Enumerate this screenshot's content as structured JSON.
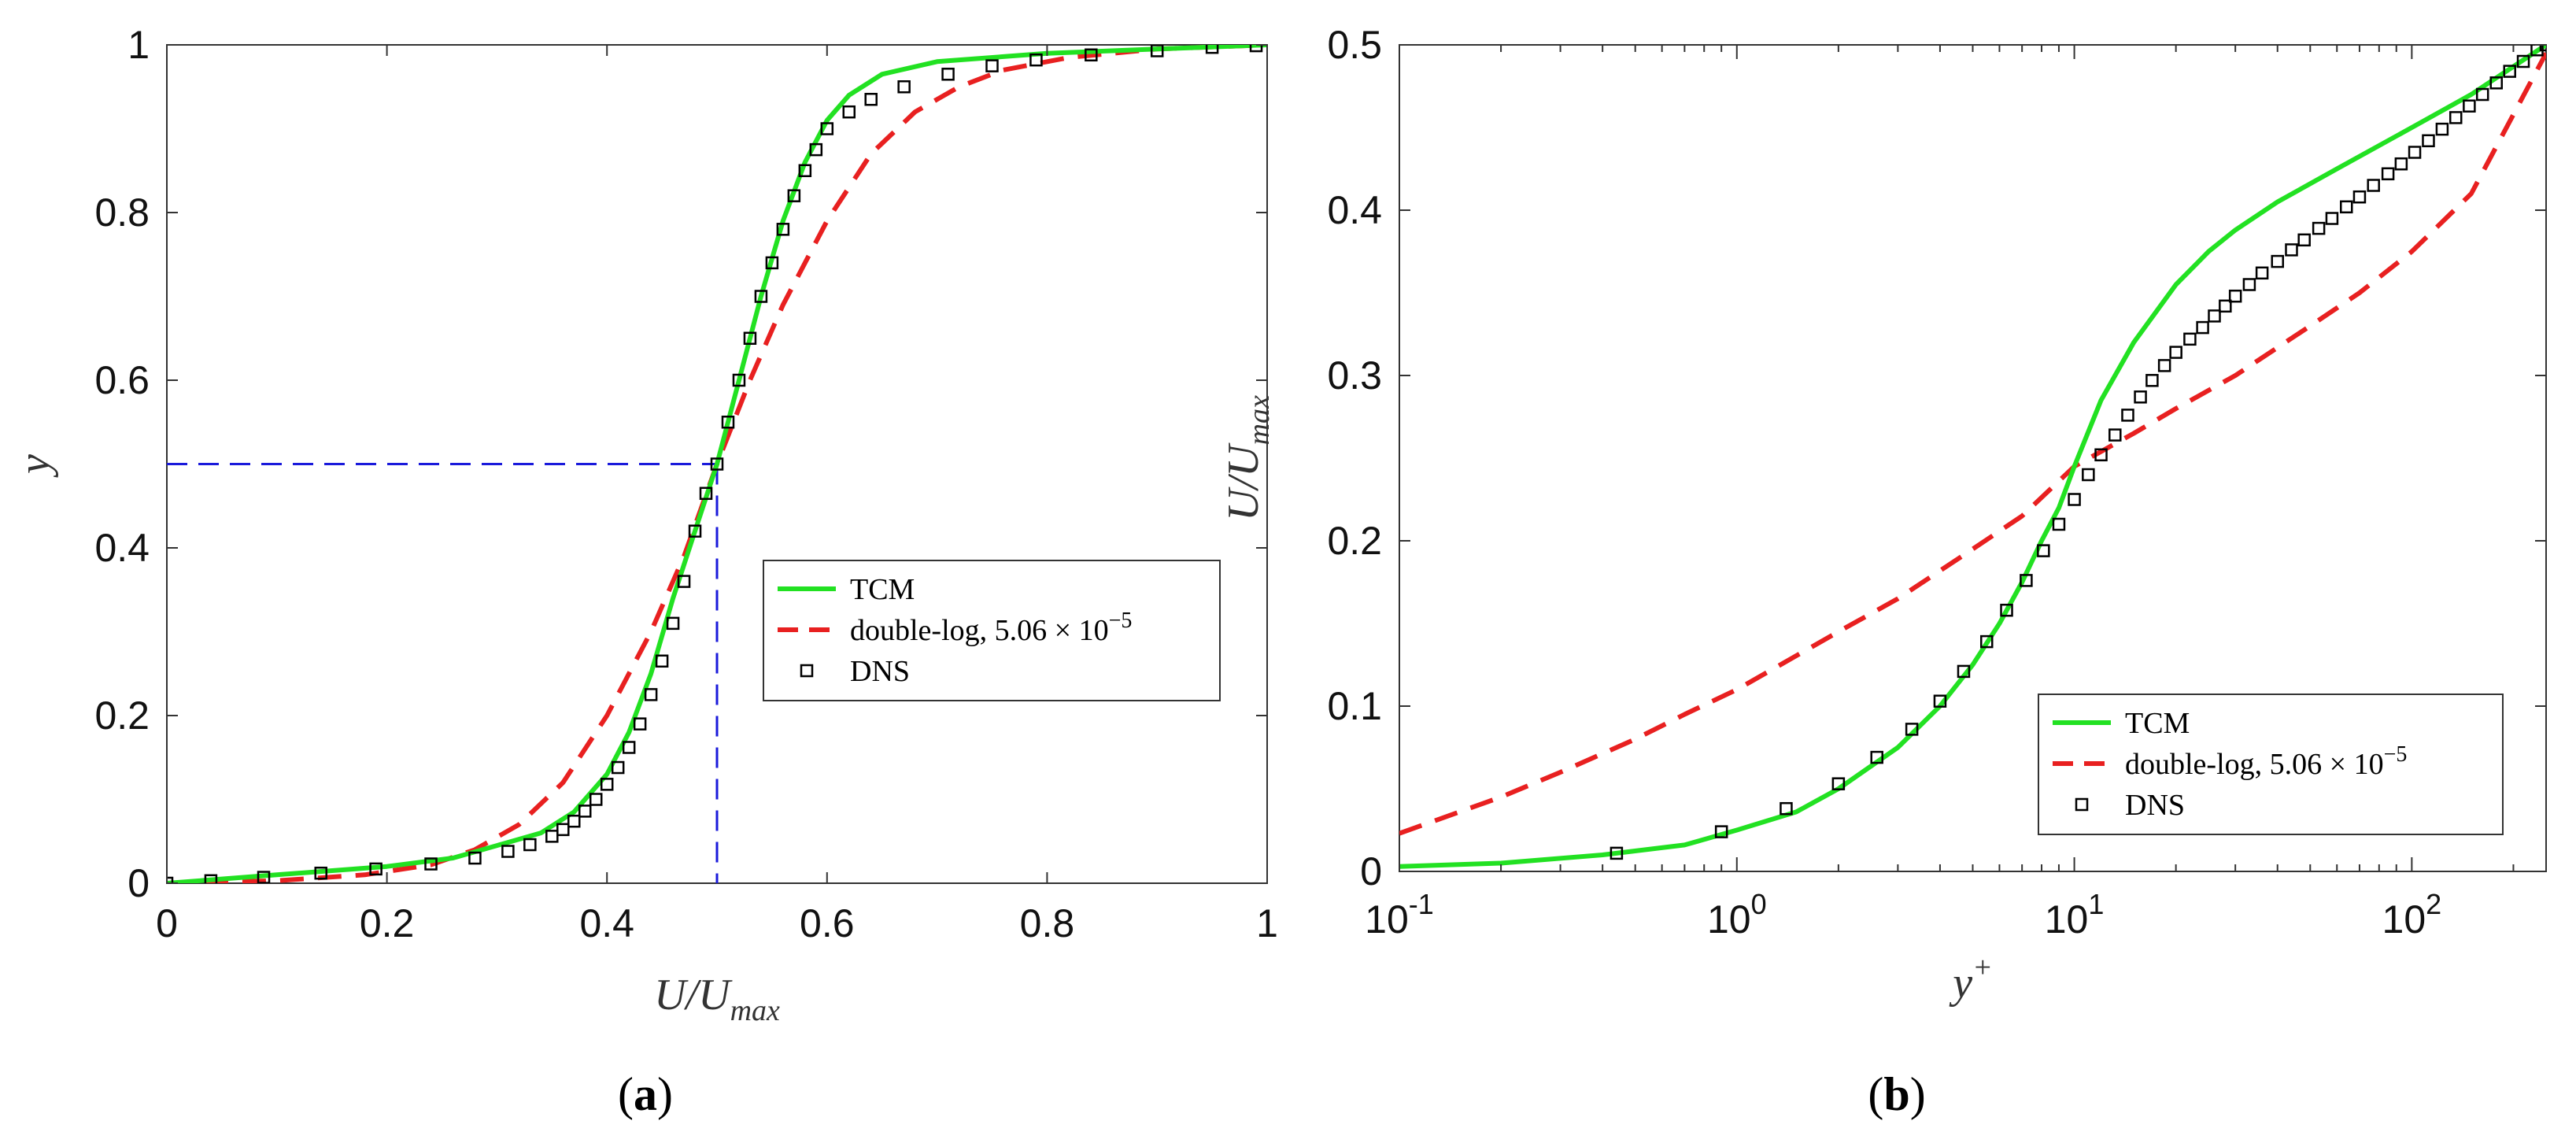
{
  "figure": {
    "panel_a_label": {
      "open": "(",
      "letter": "a",
      "close": ")"
    },
    "panel_b_label": {
      "open": "(",
      "letter": "b",
      "close": ")"
    }
  },
  "chart_data": [
    {
      "id": "a",
      "type": "line",
      "xlabel": {
        "base": "U/U",
        "sub": "max"
      },
      "ylabel": {
        "base": "y"
      },
      "xlim": [
        0,
        1
      ],
      "ylim": [
        0,
        1
      ],
      "xticks": [
        "0",
        "0.2",
        "0.4",
        "0.6",
        "0.8",
        "1"
      ],
      "xtick_values": [
        0,
        0.2,
        0.4,
        0.6,
        0.8,
        1
      ],
      "yticks": [
        "0",
        "0.2",
        "0.4",
        "0.6",
        "0.8",
        "1"
      ],
      "ytick_values": [
        0,
        0.2,
        0.4,
        0.6,
        0.8,
        1
      ],
      "grid": false,
      "legend": {
        "position": "center-right",
        "entries": [
          {
            "label": "TCM",
            "style": "solid",
            "color": "#22e122"
          },
          {
            "label": "double-log, 5.06 × 10",
            "sup": "−5",
            "style": "dashed",
            "color": "#e82020"
          },
          {
            "label": "DNS",
            "style": "marker-square",
            "color": "#000000"
          }
        ]
      },
      "guide_lines": {
        "x": 0.5,
        "y": 0.5,
        "color": "#1a1adb",
        "style": "dashed"
      },
      "series": [
        {
          "name": "TCM",
          "color": "#22e122",
          "x": [
            0,
            0.1,
            0.2,
            0.26,
            0.3,
            0.34,
            0.37,
            0.4,
            0.42,
            0.44,
            0.46,
            0.48,
            0.5,
            0.52,
            0.54,
            0.56,
            0.58,
            0.6,
            0.62,
            0.65,
            0.7,
            0.8,
            0.9,
            1.0
          ],
          "y": [
            0,
            0.01,
            0.02,
            0.03,
            0.045,
            0.06,
            0.085,
            0.13,
            0.18,
            0.25,
            0.34,
            0.42,
            0.5,
            0.6,
            0.7,
            0.79,
            0.86,
            0.91,
            0.94,
            0.965,
            0.98,
            0.99,
            0.995,
            1.0
          ]
        },
        {
          "name": "double-log, 5.06 × 10^-5",
          "color": "#e82020",
          "x": [
            0,
            0.1,
            0.18,
            0.24,
            0.28,
            0.32,
            0.36,
            0.4,
            0.44,
            0.47,
            0.5,
            0.53,
            0.56,
            0.6,
            0.64,
            0.68,
            0.72,
            0.76,
            0.82,
            0.9,
            1.0
          ],
          "y": [
            0,
            0.003,
            0.01,
            0.022,
            0.04,
            0.07,
            0.12,
            0.2,
            0.3,
            0.39,
            0.5,
            0.6,
            0.69,
            0.79,
            0.87,
            0.92,
            0.95,
            0.97,
            0.985,
            0.995,
            1.0
          ]
        },
        {
          "name": "DNS",
          "color": "#000000",
          "marker": "square",
          "x": [
            0.0,
            0.04,
            0.088,
            0.14,
            0.19,
            0.24,
            0.28,
            0.31,
            0.33,
            0.35,
            0.36,
            0.37,
            0.38,
            0.39,
            0.4,
            0.41,
            0.42,
            0.43,
            0.44,
            0.45,
            0.46,
            0.47,
            0.48,
            0.49,
            0.5,
            0.51,
            0.52,
            0.53,
            0.54,
            0.55,
            0.56,
            0.57,
            0.58,
            0.59,
            0.6,
            0.62,
            0.64,
            0.67,
            0.71,
            0.75,
            0.79,
            0.84,
            0.9,
            0.95,
            0.99
          ],
          "y": [
            0.0,
            0.003,
            0.007,
            0.012,
            0.017,
            0.023,
            0.03,
            0.038,
            0.046,
            0.056,
            0.064,
            0.074,
            0.086,
            0.1,
            0.118,
            0.138,
            0.162,
            0.19,
            0.225,
            0.265,
            0.31,
            0.36,
            0.42,
            0.465,
            0.5,
            0.55,
            0.6,
            0.65,
            0.7,
            0.74,
            0.78,
            0.82,
            0.85,
            0.875,
            0.9,
            0.92,
            0.935,
            0.95,
            0.965,
            0.975,
            0.982,
            0.988,
            0.993,
            0.997,
            0.999
          ]
        }
      ]
    },
    {
      "id": "b",
      "type": "line",
      "xscale": "log",
      "xlabel": {
        "base": "y",
        "sup": "+"
      },
      "ylabel": {
        "base": "U/U",
        "sub": "max"
      },
      "xlim": [
        0.1,
        250
      ],
      "ylim": [
        0,
        0.5
      ],
      "xticks": [
        {
          "base": "10",
          "exp": "-1",
          "value": 0.1
        },
        {
          "base": "10",
          "exp": "0",
          "value": 1
        },
        {
          "base": "10",
          "exp": "1",
          "value": 10
        },
        {
          "base": "10",
          "exp": "2",
          "value": 100
        }
      ],
      "yticks": [
        "0",
        "0.1",
        "0.2",
        "0.3",
        "0.4",
        "0.5"
      ],
      "ytick_values": [
        0,
        0.1,
        0.2,
        0.3,
        0.4,
        0.5
      ],
      "grid": false,
      "legend": {
        "position": "bottom-right",
        "entries": [
          {
            "label": "TCM",
            "style": "solid",
            "color": "#22e122"
          },
          {
            "label": "double-log, 5.06 × 10",
            "sup": "−5",
            "style": "dashed",
            "color": "#e82020"
          },
          {
            "label": "DNS",
            "style": "marker-square",
            "color": "#000000"
          }
        ]
      },
      "series": [
        {
          "name": "TCM",
          "color": "#22e122",
          "x": [
            0.1,
            0.2,
            0.4,
            0.7,
            1,
            1.5,
            2,
            3,
            4,
            5,
            6,
            7,
            8,
            9,
            10,
            12,
            15,
            20,
            25,
            30,
            40,
            60,
            100,
            150,
            250
          ],
          "y": [
            0.003,
            0.005,
            0.01,
            0.016,
            0.025,
            0.036,
            0.05,
            0.075,
            0.1,
            0.125,
            0.15,
            0.175,
            0.2,
            0.22,
            0.245,
            0.285,
            0.32,
            0.355,
            0.375,
            0.388,
            0.405,
            0.425,
            0.45,
            0.47,
            0.5
          ]
        },
        {
          "name": "double-log, 5.06 × 10^-5",
          "color": "#e82020",
          "x": [
            0.1,
            0.2,
            0.3,
            0.5,
            0.7,
            1,
            2,
            3,
            5,
            7,
            10,
            15,
            20,
            30,
            50,
            70,
            100,
            150,
            250
          ],
          "y": [
            0.023,
            0.045,
            0.06,
            0.08,
            0.095,
            0.11,
            0.145,
            0.165,
            0.195,
            0.215,
            0.245,
            0.265,
            0.28,
            0.3,
            0.33,
            0.35,
            0.375,
            0.41,
            0.495
          ]
        },
        {
          "name": "DNS",
          "color": "#000000",
          "marker": "square",
          "x": [
            0.44,
            0.9,
            1.4,
            2.0,
            2.6,
            3.3,
            4.0,
            4.7,
            5.5,
            6.3,
            7.2,
            8.1,
            9.0,
            10.0,
            11.0,
            12.0,
            13.2,
            14.4,
            15.7,
            17.0,
            18.5,
            20,
            22,
            24,
            26,
            28,
            30,
            33,
            36,
            40,
            44,
            48,
            53,
            58,
            64,
            70,
            77,
            85,
            93,
            102,
            112,
            123,
            135,
            148,
            162,
            178,
            195,
            214,
            235,
            250
          ],
          "y": [
            0.011,
            0.024,
            0.038,
            0.053,
            0.069,
            0.086,
            0.103,
            0.121,
            0.139,
            0.158,
            0.176,
            0.194,
            0.21,
            0.225,
            0.24,
            0.252,
            0.264,
            0.276,
            0.287,
            0.297,
            0.306,
            0.314,
            0.322,
            0.329,
            0.336,
            0.342,
            0.348,
            0.355,
            0.362,
            0.369,
            0.376,
            0.382,
            0.389,
            0.395,
            0.402,
            0.408,
            0.415,
            0.422,
            0.428,
            0.435,
            0.442,
            0.449,
            0.456,
            0.463,
            0.47,
            0.477,
            0.484,
            0.49,
            0.497,
            0.5
          ]
        }
      ]
    }
  ]
}
